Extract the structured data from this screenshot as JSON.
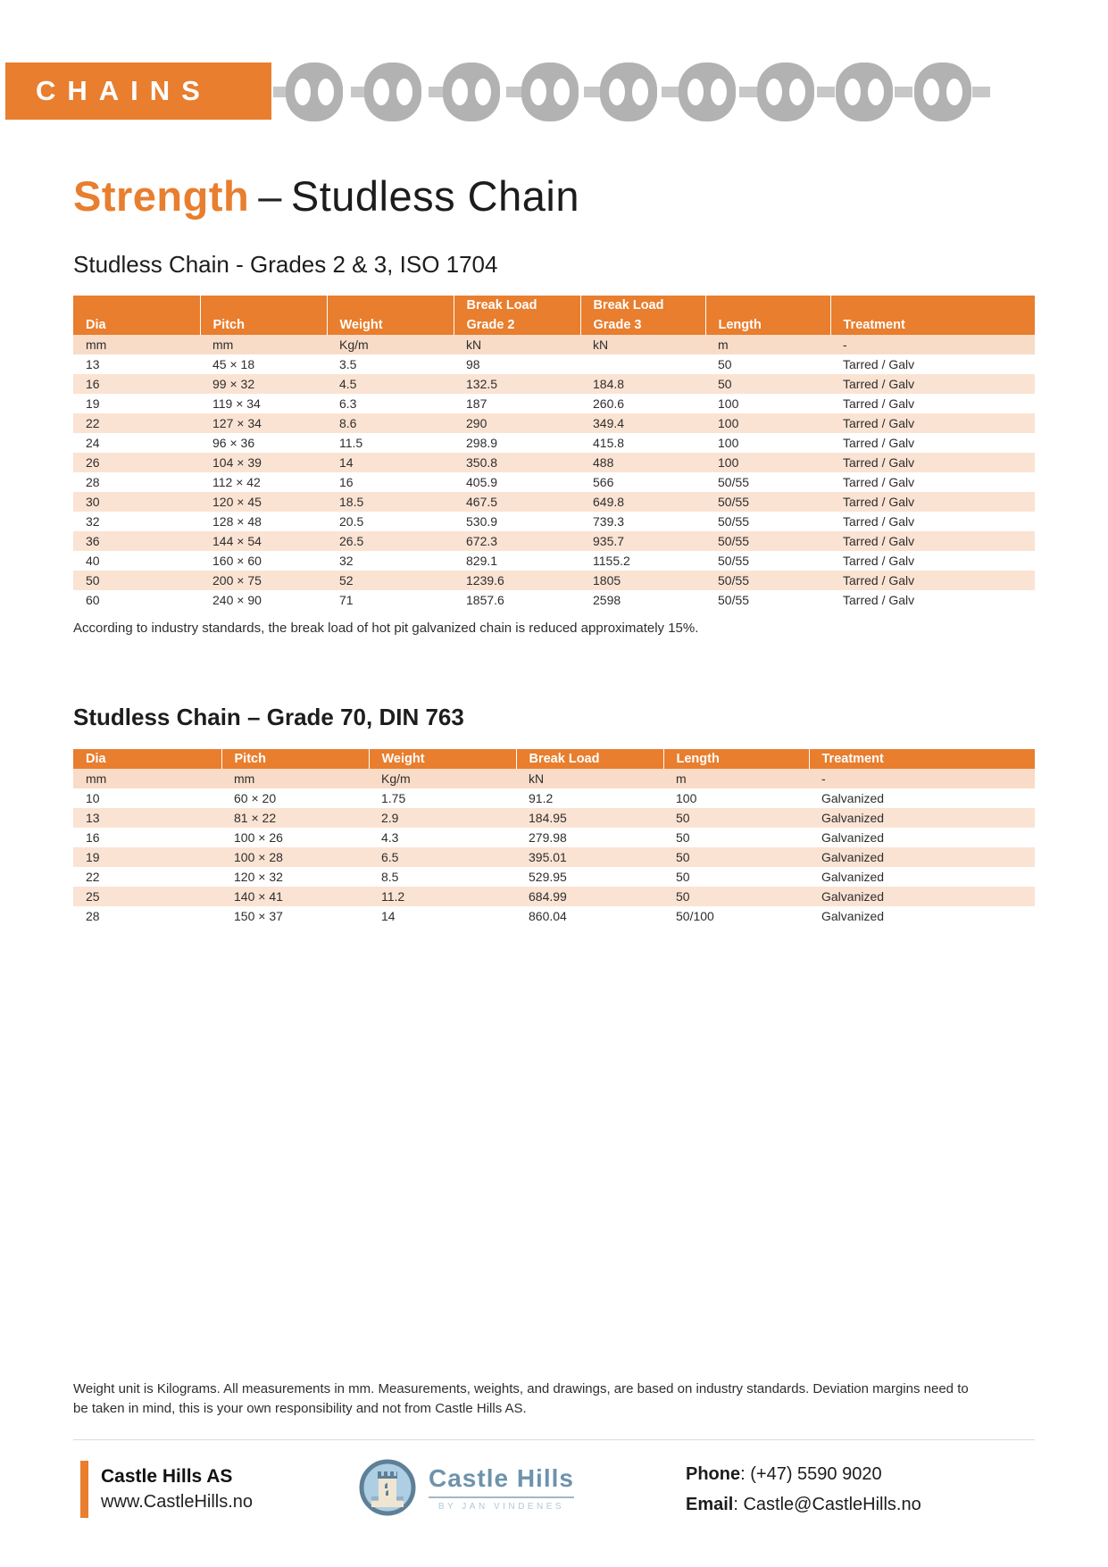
{
  "colors": {
    "accent": "#E87E2E",
    "row_alt": "#FBE3D3",
    "units_row": "#F8DCC8",
    "chain_gray": "#B2B2B2",
    "logo_blue": "#6E93AC"
  },
  "banner": {
    "label": "CHAINS"
  },
  "title": {
    "highlight": "Strength",
    "separator": "–",
    "rest": "Studless Chain"
  },
  "table1": {
    "heading": "Studless Chain - Grades 2 & 3, ISO 1704",
    "group_headers": [
      "",
      "",
      "",
      "Break Load",
      "Break Load",
      "",
      ""
    ],
    "columns": [
      "Dia",
      "Pitch",
      "Weight",
      "Grade 2",
      "Grade 3",
      "Length",
      "Treatment"
    ],
    "units": [
      "mm",
      "mm",
      "Kg/m",
      "kN",
      "kN",
      "m",
      "-"
    ],
    "rows": [
      [
        "13",
        "45 × 18",
        "3.5",
        "98",
        "",
        "50",
        "Tarred / Galv"
      ],
      [
        "16",
        "99 × 32",
        "4.5",
        "132.5",
        "184.8",
        "50",
        "Tarred / Galv"
      ],
      [
        "19",
        "119 × 34",
        "6.3",
        "187",
        "260.6",
        "100",
        "Tarred / Galv"
      ],
      [
        "22",
        "127 × 34",
        "8.6",
        "290",
        "349.4",
        "100",
        "Tarred / Galv"
      ],
      [
        "24",
        "96 × 36",
        "11.5",
        "298.9",
        "415.8",
        "100",
        "Tarred / Galv"
      ],
      [
        "26",
        "104 × 39",
        "14",
        "350.8",
        "488",
        "100",
        "Tarred / Galv"
      ],
      [
        "28",
        "112 × 42",
        "16",
        "405.9",
        "566",
        "50/55",
        "Tarred / Galv"
      ],
      [
        "30",
        "120 × 45",
        "18.5",
        "467.5",
        "649.8",
        "50/55",
        "Tarred / Galv"
      ],
      [
        "32",
        "128 × 48",
        "20.5",
        "530.9",
        "739.3",
        "50/55",
        "Tarred / Galv"
      ],
      [
        "36",
        "144 × 54",
        "26.5",
        "672.3",
        "935.7",
        "50/55",
        "Tarred / Galv"
      ],
      [
        "40",
        "160 × 60",
        "32",
        "829.1",
        "1155.2",
        "50/55",
        "Tarred / Galv"
      ],
      [
        "50",
        "200 × 75",
        "52",
        "1239.6",
        "1805",
        "50/55",
        "Tarred / Galv"
      ],
      [
        "60",
        "240 × 90",
        "71",
        "1857.6",
        "2598",
        "50/55",
        "Tarred / Galv"
      ]
    ],
    "note": "According to industry standards, the break load of hot pit galvanized chain is reduced approximately 15%."
  },
  "table2": {
    "heading": "Studless Chain – Grade 70, DIN 763",
    "columns": [
      "Dia",
      "Pitch",
      "Weight",
      "Break Load",
      "Length",
      "Treatment"
    ],
    "units": [
      "mm",
      "mm",
      "Kg/m",
      "kN",
      "m",
      "-"
    ],
    "rows": [
      [
        "10",
        "60 × 20",
        "1.75",
        "91.2",
        "100",
        "Galvanized"
      ],
      [
        "13",
        "81 × 22",
        "2.9",
        "184.95",
        "50",
        "Galvanized"
      ],
      [
        "16",
        "100 × 26",
        "4.3",
        "279.98",
        "50",
        "Galvanized"
      ],
      [
        "19",
        "100 × 28",
        "6.5",
        "395.01",
        "50",
        "Galvanized"
      ],
      [
        "22",
        "120 × 32",
        "8.5",
        "529.95",
        "50",
        "Galvanized"
      ],
      [
        "25",
        "140 × 41",
        "11.2",
        "684.99",
        "50",
        "Galvanized"
      ],
      [
        "28",
        "150 × 37",
        "14",
        "860.04",
        "50/100",
        "Galvanized"
      ]
    ]
  },
  "disclaimer": "Weight unit is Kilograms. All measurements in mm. Measurements, weights, and drawings, are based on industry standards. Deviation margins need to be taken in mind, this is your own responsibility and not from Castle Hills AS.",
  "footer": {
    "company": "Castle Hills AS",
    "website": "www.CastleHills.no",
    "logo_text": "Castle Hills",
    "logo_subtext": "BY JAN VINDENES",
    "phone_label": "Phone",
    "phone_value": ": (+47) 5590 9020",
    "email_label": "Email",
    "email_value": ": Castle@CastleHills.no"
  }
}
